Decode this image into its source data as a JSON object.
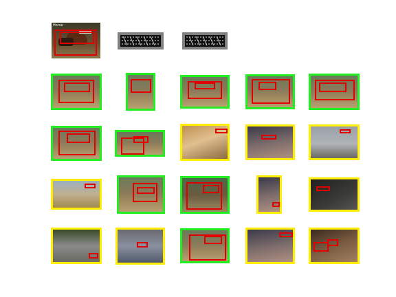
{
  "colors": {
    "background": "#ffffff",
    "correct_frame": "#22ee22",
    "incorrect_frame": "#ffee00",
    "bbox": "#e00000",
    "placeholder_frame": "#808080"
  },
  "query": {
    "label": "Horse",
    "icon": "horse-racing-photo"
  },
  "placeholders": [
    {
      "icon": "hog-template-icon"
    },
    {
      "icon": "hog-template-icon"
    }
  ],
  "results": [
    {
      "status": "correct",
      "icon": "harness-racing-photo"
    },
    {
      "status": "correct",
      "icon": "harness-racing-photo"
    },
    {
      "status": "correct",
      "icon": "harness-racing-photo"
    },
    {
      "status": "correct",
      "icon": "harness-racing-photo"
    },
    {
      "status": "correct",
      "icon": "harness-racing-photo"
    },
    {
      "status": "correct",
      "icon": "harness-racing-photo"
    },
    {
      "status": "correct",
      "icon": "harness-racing-photo"
    },
    {
      "status": "incorrect",
      "icon": "dog-photo"
    },
    {
      "status": "incorrect",
      "icon": "person-photo"
    },
    {
      "status": "incorrect",
      "icon": "airplane-photo"
    },
    {
      "status": "incorrect",
      "icon": "cyclist-photo"
    },
    {
      "status": "correct",
      "icon": "harness-racing-photo"
    },
    {
      "status": "correct",
      "icon": "horse-photo"
    },
    {
      "status": "incorrect",
      "icon": "person-photo"
    },
    {
      "status": "incorrect",
      "icon": "cat-photo"
    },
    {
      "status": "incorrect",
      "icon": "car-photo"
    },
    {
      "status": "incorrect",
      "icon": "crowd-photo"
    },
    {
      "status": "correct",
      "icon": "harness-racing-photo"
    },
    {
      "status": "incorrect",
      "icon": "person-photo"
    },
    {
      "status": "incorrect",
      "icon": "people-photo"
    }
  ]
}
